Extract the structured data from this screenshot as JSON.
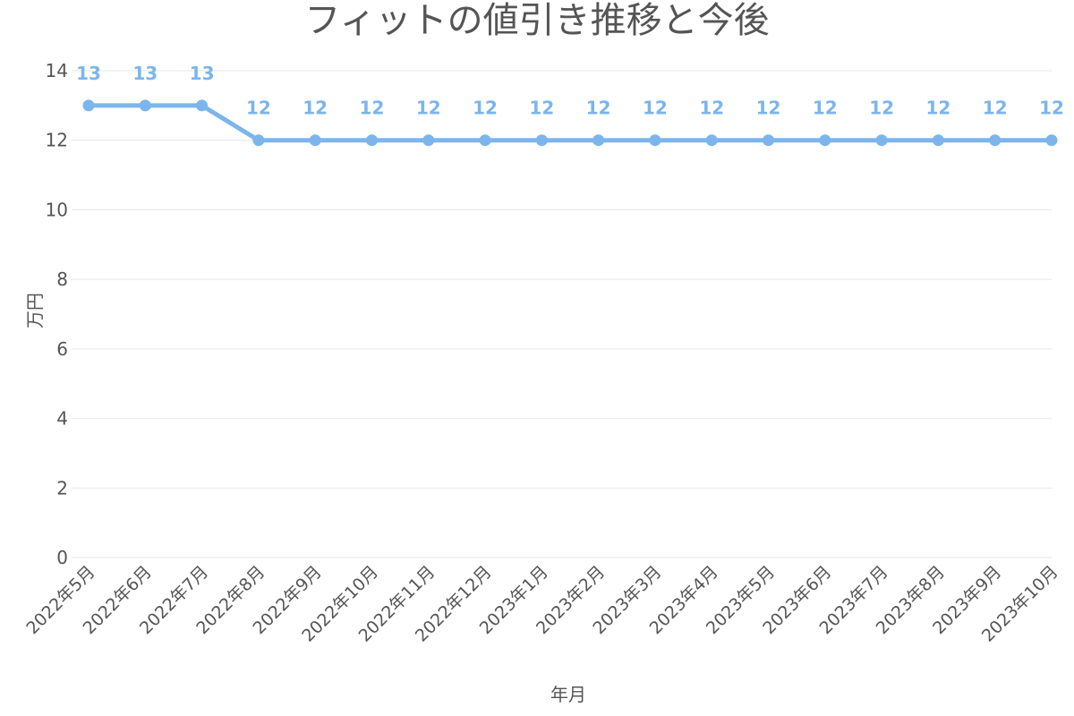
{
  "chart_data": {
    "type": "line",
    "title": "フィットの値引き推移と今後",
    "xlabel": "年月",
    "ylabel": "万円",
    "ylim": [
      0,
      14
    ],
    "yticks": [
      0,
      2,
      4,
      6,
      8,
      10,
      12,
      14
    ],
    "grid": true,
    "categories": [
      "2022年5月",
      "2022年6月",
      "2022年7月",
      "2022年8月",
      "2022年9月",
      "2022年10月",
      "2022年11月",
      "2022年12月",
      "2023年1月",
      "2023年2月",
      "2023年3月",
      "2023年4月",
      "2023年5月",
      "2023年6月",
      "2023年7月",
      "2023年8月",
      "2023年9月",
      "2023年10月"
    ],
    "series": [
      {
        "values": [
          13,
          13,
          13,
          12,
          12,
          12,
          12,
          12,
          12,
          12,
          12,
          12,
          12,
          12,
          12,
          12,
          12,
          12
        ],
        "color": "#7cb5ec"
      }
    ]
  },
  "colors": {
    "series": "#7cb5ec",
    "grid": "#e6e6e6",
    "text": "#555555"
  }
}
